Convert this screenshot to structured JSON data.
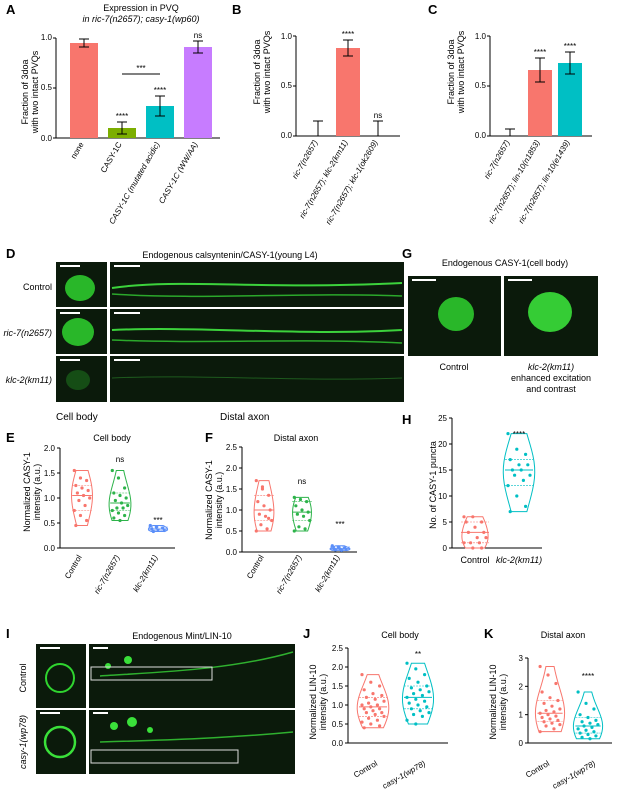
{
  "panels": {
    "A": {
      "letter": "A",
      "header1": "Expression in PVQ",
      "header2": "in ric-7(n2657); casy-1(wp60)",
      "ylabel1": "Fraction of 3doa",
      "ylabel2": "with two intact PVQs",
      "yticks": [
        "0.0",
        "0.5",
        "1.0"
      ],
      "stars_pair": "***"
    },
    "B": {
      "letter": "B",
      "ylabel1": "Fraction of 3doa",
      "ylabel2": "with two intact PVQs",
      "yticks": [
        "0.0",
        "0.5",
        "1.0"
      ]
    },
    "C": {
      "letter": "C",
      "ylabel1": "Fraction of 3doa",
      "ylabel2": "with two intact PVQs",
      "yticks": [
        "0.0",
        "0.5",
        "1.0"
      ]
    },
    "D": {
      "letter": "D",
      "title": "Endogenous calsyntenin/CASY-1(young L4)",
      "rows": [
        "Control",
        "ric-7(n2657)",
        "klc-2(km11)"
      ],
      "cell_body": "Cell body",
      "distal_axon": "Distal axon"
    },
    "E": {
      "letter": "E",
      "title": "Cell body",
      "ylabel1": "Normalized CASY-1",
      "ylabel2": "intensity (a.u.)",
      "yticks": [
        "0.0",
        "0.5",
        "1.0",
        "1.5",
        "2.0"
      ],
      "xticks": [
        "Control",
        "ric-7(n2657)",
        "klc-2(km11)"
      ],
      "sig": [
        "ns",
        "***"
      ]
    },
    "F": {
      "letter": "F",
      "title": "Distal axon",
      "ylabel1": "Normalized CASY-1",
      "ylabel2": "intensity (a.u.)",
      "yticks": [
        "0.0",
        "0.5",
        "1.0",
        "1.5",
        "2.0",
        "2.5"
      ],
      "xticks": [
        "Control",
        "ric-7(n2657)",
        "klc-2(km11)"
      ],
      "sig": [
        "ns",
        "***"
      ]
    },
    "G": {
      "letter": "G",
      "title": "Endogenous CASY-1(cell body)",
      "label_control": "Control",
      "label_mut1": "klc-2(km11)",
      "label_mut2": "enhanced excitation",
      "label_mut3": "and contrast"
    },
    "H": {
      "letter": "H",
      "ylabel": "No. of CASY-1 puncta",
      "yticks": [
        "0",
        "5",
        "10",
        "15",
        "20",
        "25"
      ],
      "xticks": [
        "Control",
        "klc-2(km11)"
      ],
      "sig": "****"
    },
    "I": {
      "letter": "I",
      "title": "Endogenous Mint/LIN-10",
      "rows": [
        "Control",
        "casy-1(wp78)"
      ]
    },
    "J": {
      "letter": "J",
      "title": "Cell body",
      "ylabel1": "Normalized LIN-10",
      "ylabel2": "intensity (a.u.)",
      "yticks": [
        "0.0",
        "0.5",
        "1.0",
        "1.5",
        "2.0",
        "2.5"
      ],
      "xticks": [
        "Control",
        "casy-1(wp78)"
      ],
      "sig": "**"
    },
    "K": {
      "letter": "K",
      "title": "Distal axon",
      "ylabel1": "Normalized LIN-10",
      "ylabel2": "intensity (a.u.)",
      "yticks": [
        "0",
        "1",
        "2",
        "3"
      ],
      "xticks": [
        "Control",
        "casy-1(wp78)"
      ],
      "sig": "****"
    }
  },
  "colors": {
    "red": "#f8766d",
    "olive": "#7cae00",
    "teal": "#00bfc4",
    "purple": "#c77cff",
    "green_vio": "#2db34a",
    "blue_vio": "#5b8ff9",
    "micro_bg": "#0b1a0b",
    "micro_fg": "#33ff33"
  },
  "chart_data": [
    {
      "panel": "A",
      "type": "bar",
      "categories": [
        "none",
        "CASY-1C",
        "CASY-1C (mutated acidic)",
        "CASY-1C (WW/AA)"
      ],
      "values": [
        0.95,
        0.1,
        0.32,
        0.91
      ],
      "errors": [
        0.04,
        0.06,
        0.1,
        0.06
      ],
      "significance": [
        "",
        "****",
        "****",
        "ns"
      ],
      "ylim": [
        0,
        1.0
      ]
    },
    {
      "panel": "B",
      "type": "bar",
      "categories": [
        "ric-7(n2657)",
        "ric-7(n2657); klc-2(km11)",
        "ric-7(n2657); klc-1(ok2609)"
      ],
      "values": [
        0.0,
        0.88,
        0.0
      ],
      "errors": [
        0.15,
        0.08,
        0.15
      ],
      "significance": [
        "",
        "****",
        "ns"
      ],
      "ylim": [
        0,
        1.0
      ]
    },
    {
      "panel": "C",
      "type": "bar",
      "categories": [
        "ric-7(n2657)",
        "ric-7(n2657); lin-10(n1853)",
        "ric-7(n2657); lin-10(e1439)"
      ],
      "values": [
        0.0,
        0.66,
        0.73
      ],
      "errors": [
        0.07,
        0.12,
        0.11
      ],
      "significance": [
        "",
        "****",
        "****"
      ],
      "ylim": [
        0,
        1.0
      ]
    },
    {
      "panel": "E",
      "type": "scatter",
      "categories": [
        "Control",
        "ric-7(n2657)",
        "klc-2(km11)"
      ],
      "series": [
        {
          "values": [
            1.55,
            1.4,
            1.35,
            1.25,
            1.2,
            1.15,
            1.1,
            1.05,
            1.0,
            0.95,
            0.85,
            0.75,
            0.65,
            0.55,
            0.45
          ]
        },
        {
          "values": [
            1.55,
            1.4,
            1.2,
            1.1,
            1.05,
            1.0,
            0.95,
            0.9,
            0.85,
            0.8,
            0.8,
            0.75,
            0.7,
            0.65,
            0.6,
            0.55
          ]
        },
        {
          "values": [
            0.45,
            0.42,
            0.4,
            0.38,
            0.36,
            0.35,
            0.33
          ]
        }
      ],
      "ylim": [
        0,
        2.0
      ]
    },
    {
      "panel": "F",
      "type": "scatter",
      "categories": [
        "Control",
        "ric-7(n2657)",
        "klc-2(km11)"
      ],
      "series": [
        {
          "values": [
            1.7,
            1.55,
            1.35,
            1.2,
            1.1,
            1.0,
            0.9,
            0.85,
            0.75,
            0.65,
            0.55,
            0.5,
            1.5,
            0.8
          ]
        },
        {
          "values": [
            1.3,
            1.25,
            1.2,
            1.1,
            1.0,
            0.95,
            0.9,
            0.85,
            0.75,
            0.6,
            0.55,
            0.5
          ]
        },
        {
          "values": [
            0.15,
            0.12,
            0.1,
            0.08,
            0.07,
            0.06,
            0.05,
            0.04
          ]
        }
      ],
      "ylim": [
        0,
        2.5
      ]
    },
    {
      "panel": "H",
      "type": "scatter",
      "categories": [
        "Control",
        "klc-2(km11)"
      ],
      "series": [
        {
          "values": [
            6,
            6,
            5,
            5,
            4,
            3,
            3,
            2,
            2,
            1,
            1,
            1,
            0,
            0
          ]
        },
        {
          "values": [
            22,
            19,
            18,
            17,
            16,
            16,
            15,
            15,
            14,
            14,
            13,
            12,
            10,
            8,
            7
          ]
        }
      ],
      "ylim": [
        0,
        25
      ]
    },
    {
      "panel": "J",
      "type": "scatter",
      "categories": [
        "Control",
        "casy-1(wp78)"
      ],
      "series": [
        {
          "values": [
            1.8,
            1.6,
            1.5,
            1.4,
            1.3,
            1.25,
            1.2,
            1.15,
            1.1,
            1.05,
            1.0,
            1.0,
            0.95,
            0.9,
            0.9,
            0.85,
            0.8,
            0.8,
            0.75,
            0.7,
            0.65,
            0.6,
            0.55,
            0.5,
            0.45,
            0.4
          ]
        },
        {
          "values": [
            2.1,
            1.95,
            1.8,
            1.7,
            1.6,
            1.5,
            1.45,
            1.4,
            1.35,
            1.3,
            1.25,
            1.2,
            1.15,
            1.1,
            1.05,
            1.0,
            0.95,
            0.9,
            0.85,
            0.8,
            0.75,
            0.7,
            0.6,
            0.5
          ]
        }
      ],
      "ylim": [
        0,
        2.5
      ]
    },
    {
      "panel": "K",
      "type": "scatter",
      "categories": [
        "Control",
        "casy-1(wp78)"
      ],
      "series": [
        {
          "values": [
            2.7,
            2.4,
            2.1,
            1.8,
            1.6,
            1.5,
            1.4,
            1.3,
            1.2,
            1.15,
            1.1,
            1.05,
            1.0,
            0.95,
            0.9,
            0.85,
            0.8,
            0.75,
            0.7,
            0.65,
            0.6,
            0.5,
            0.4
          ]
        },
        {
          "values": [
            1.8,
            1.4,
            1.2,
            1.0,
            0.9,
            0.8,
            0.75,
            0.7,
            0.65,
            0.6,
            0.55,
            0.5,
            0.45,
            0.4,
            0.35,
            0.3,
            0.25,
            0.2,
            0.15
          ]
        }
      ],
      "ylim": [
        0,
        3
      ]
    }
  ]
}
